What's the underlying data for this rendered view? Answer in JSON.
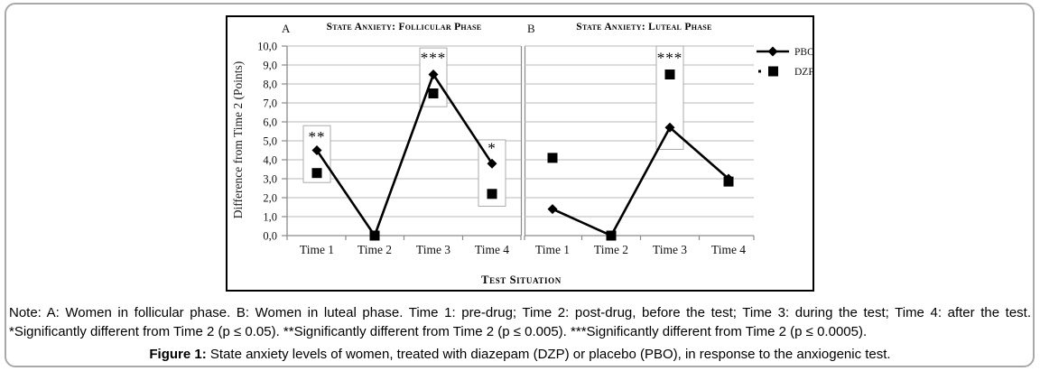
{
  "figure": {
    "panel_a_label": "A",
    "panel_a_title": "State Anxiety: Follicular Phase",
    "panel_b_label": "B",
    "panel_b_title": "State Anxiety: Luteal Phase",
    "y_axis_label": "Difference from Time 2 (Points)",
    "x_axis_label": "Test Situation",
    "legend": [
      {
        "label": "PBO",
        "marker": "diamond-line"
      },
      {
        "label": "DZP",
        "marker": "square-dot"
      }
    ]
  },
  "chart_data": [
    {
      "type": "line",
      "panel": "A",
      "title": "State Anxiety: Follicular Phase",
      "xlabel": "TEST SITUATION",
      "ylabel": "Difference from Time 2 (Points)",
      "categories": [
        "Time 1",
        "Time 2",
        "Time 3",
        "Time 4"
      ],
      "series": [
        {
          "name": "PBO",
          "marker": "diamond",
          "connect": true,
          "values": [
            4.5,
            0.0,
            8.5,
            3.8
          ]
        },
        {
          "name": "DZP",
          "marker": "square",
          "connect": false,
          "values": [
            3.3,
            0.0,
            7.5,
            2.2
          ]
        }
      ],
      "annotations": [
        {
          "time_index": 0,
          "label": "**",
          "label_y": 5.2,
          "box_y_range": [
            2.8,
            5.8
          ]
        },
        {
          "time_index": 2,
          "label": "***",
          "label_y": 9.35,
          "box_y_range": [
            6.8,
            9.9
          ]
        },
        {
          "time_index": 3,
          "label": "*",
          "label_y": 4.6,
          "box_y_range": [
            1.55,
            5.05
          ]
        }
      ],
      "ylim": [
        0,
        10
      ],
      "y_tick_labels": [
        "0,0",
        "1,0",
        "2,0",
        "3,0",
        "4,0",
        "5,0",
        "6,0",
        "7,0",
        "8,0",
        "9,0",
        "10,0"
      ],
      "grid": true,
      "legend_position": "right"
    },
    {
      "type": "line",
      "panel": "B",
      "title": "State Anxiety: Luteal Phase",
      "xlabel": "TEST SITUATION",
      "ylabel": "Difference from Time 2 (Points)",
      "categories": [
        "Time 1",
        "Time 2",
        "Time 3",
        "Time 4"
      ],
      "series": [
        {
          "name": "PBO",
          "marker": "diamond",
          "connect": true,
          "values": [
            1.4,
            0.0,
            5.7,
            3.0
          ]
        },
        {
          "name": "DZP",
          "marker": "square",
          "connect": false,
          "values": [
            4.1,
            0.0,
            8.5,
            2.85
          ]
        }
      ],
      "annotations": [
        {
          "time_index": 2,
          "label": "***",
          "label_y": 9.35,
          "box_y_range": [
            4.55,
            10.0
          ]
        }
      ],
      "ylim": [
        0,
        10
      ],
      "y_tick_labels": [
        "0,0",
        "1,0",
        "2,0",
        "3,0",
        "4,0",
        "5,0",
        "6,0",
        "7,0",
        "8,0",
        "9,0",
        "10,0"
      ],
      "grid": true,
      "legend_position": "right"
    }
  ],
  "note": {
    "line1": "Note: A: Women in follicular phase. B: Women in luteal phase. Time 1: pre-drug; Time 2: post-drug, before the test; Time 3: during the test; Time 4: after the test.",
    "line2": "*Significantly different from Time 2 (p ≤ 0.05). **Significantly different from Time 2 (p ≤ 0.005). ***Significantly different from Time 2 (p ≤ 0.0005)."
  },
  "caption": {
    "prefix": "Figure 1:",
    "text": "State anxiety levels of women, treated with diazepam (DZP) or placebo (PBO), in response to the anxiogenic test."
  },
  "colors": {
    "series": "#000000",
    "gridline": "#b9b9b9",
    "axis": "#8a8a8a",
    "annotation_box_border": "#ababab",
    "frame": "#000000",
    "card_border": "#a9a9a9"
  }
}
